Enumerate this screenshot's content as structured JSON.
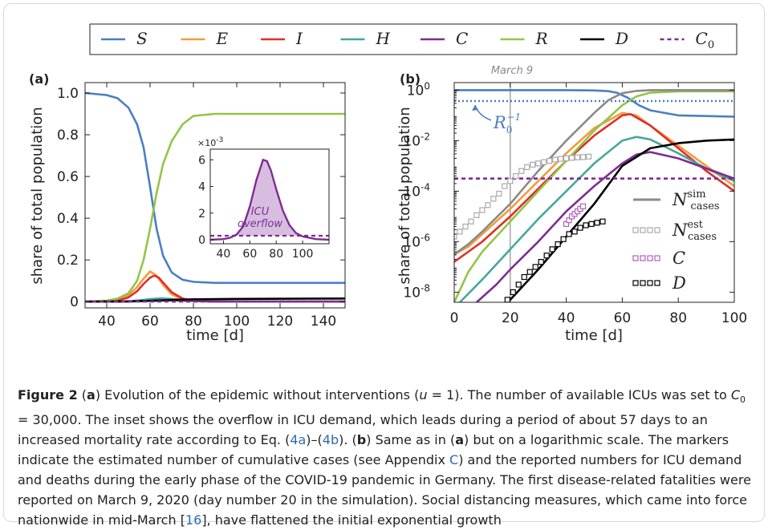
{
  "legend": [
    {
      "label": "S",
      "color": "#4a7fc1",
      "dash": false
    },
    {
      "label": "E",
      "color": "#f39c3b",
      "dash": false
    },
    {
      "label": "I",
      "color": "#e0302b",
      "dash": false
    },
    {
      "label": "H",
      "color": "#45a89a",
      "dash": false
    },
    {
      "label": "C",
      "color": "#7d2e8f",
      "dash": false
    },
    {
      "label": "R",
      "color": "#93c548",
      "dash": false
    },
    {
      "label": "D",
      "color": "#000000",
      "dash": false
    },
    {
      "label": "C",
      "sub": "0",
      "color": "#7d2e8f",
      "dash": true
    }
  ],
  "panel_a": {
    "tag": "(a)",
    "ylabel": "share of total population",
    "xlabel": "time [d]",
    "x_ticks": [
      "40",
      "60",
      "80",
      "100",
      "120",
      "140"
    ],
    "y_ticks": [
      "0",
      "0.2",
      "0.4",
      "0.6",
      "0.8",
      "1.0"
    ],
    "inset": {
      "multiplier": "×10",
      "multiplier_exp": "-3",
      "x_ticks": [
        "40",
        "60",
        "80",
        "100"
      ],
      "y_ticks": [
        "0",
        "2",
        "4",
        "6"
      ],
      "label_line1": "ICU",
      "label_line2": "overflow"
    }
  },
  "panel_b": {
    "tag": "(b)",
    "march_label": "March 9",
    "ylabel": "share of total population",
    "xlabel": "time [d]",
    "x_ticks": [
      "0",
      "20",
      "40",
      "60",
      "80",
      "100"
    ],
    "y_tick_base": "10",
    "y_tick_exps": [
      "0",
      "-2",
      "-4",
      "-6",
      "-8"
    ],
    "r0_label": "R",
    "r0_sub": "0",
    "r0_sup": "−1",
    "marker_legend": [
      {
        "sym": "N",
        "sub": "cases",
        "sup": "sim",
        "style": "line",
        "color": "#8a8a8a"
      },
      {
        "sym": "N",
        "sub": "cases",
        "sup": "est",
        "style": "squares",
        "color": "#a9a9a9"
      },
      {
        "sym": "C",
        "sub": "",
        "sup": "",
        "style": "squares",
        "color": "#b05dc0"
      },
      {
        "sym": "D",
        "sub": "",
        "sup": "",
        "style": "squares",
        "color": "#000000"
      }
    ]
  },
  "chart_data": [
    {
      "type": "line",
      "panel": "a",
      "xlabel": "time [d]",
      "ylabel": "share of total population",
      "xlim": [
        30,
        150
      ],
      "ylim": [
        -0.03,
        1.05
      ],
      "series": [
        {
          "name": "S",
          "x": [
            30,
            40,
            45,
            50,
            54,
            57,
            60,
            63,
            66,
            70,
            75,
            80,
            90,
            100,
            120,
            150
          ],
          "y": [
            1.0,
            0.99,
            0.975,
            0.93,
            0.85,
            0.74,
            0.55,
            0.35,
            0.22,
            0.14,
            0.105,
            0.095,
            0.09,
            0.09,
            0.09,
            0.09
          ]
        },
        {
          "name": "E",
          "x": [
            30,
            40,
            45,
            50,
            54,
            57,
            60,
            63,
            66,
            70,
            75,
            80,
            90,
            150
          ],
          "y": [
            0,
            0.002,
            0.008,
            0.03,
            0.07,
            0.11,
            0.145,
            0.125,
            0.08,
            0.035,
            0.01,
            0.003,
            0,
            0
          ]
        },
        {
          "name": "I",
          "x": [
            30,
            40,
            45,
            50,
            54,
            57,
            60,
            62,
            64,
            67,
            70,
            75,
            80,
            90,
            150
          ],
          "y": [
            0,
            0.001,
            0.005,
            0.02,
            0.05,
            0.085,
            0.115,
            0.125,
            0.115,
            0.08,
            0.045,
            0.015,
            0.004,
            0,
            0
          ]
        },
        {
          "name": "H",
          "x": [
            30,
            50,
            55,
            60,
            65,
            70,
            75,
            80,
            90,
            100,
            150
          ],
          "y": [
            0,
            0.002,
            0.006,
            0.012,
            0.016,
            0.013,
            0.008,
            0.004,
            0.001,
            0,
            0
          ]
        },
        {
          "name": "C",
          "x": [
            30,
            50,
            60,
            70,
            80,
            90,
            150
          ],
          "y": [
            0,
            0.001,
            0.004,
            0.006,
            0.003,
            0.001,
            0
          ]
        },
        {
          "name": "R",
          "x": [
            30,
            40,
            45,
            50,
            54,
            57,
            60,
            63,
            66,
            70,
            75,
            80,
            90,
            100,
            120,
            150
          ],
          "y": [
            0,
            0.005,
            0.015,
            0.04,
            0.1,
            0.2,
            0.35,
            0.52,
            0.66,
            0.77,
            0.85,
            0.89,
            0.9,
            0.9,
            0.9,
            0.9
          ]
        },
        {
          "name": "D",
          "x": [
            30,
            50,
            60,
            70,
            80,
            100,
            150
          ],
          "y": [
            0,
            0.001,
            0.004,
            0.008,
            0.011,
            0.013,
            0.015
          ]
        },
        {
          "name": "C0",
          "x": [
            30,
            150
          ],
          "y": [
            0.0003,
            0.0003
          ]
        }
      ]
    },
    {
      "type": "line",
      "panel": "a-inset",
      "xlabel": "",
      "ylabel": "",
      "xlim": [
        30,
        120
      ],
      "ylim": [
        -0.0003,
        0.0068
      ],
      "series": [
        {
          "name": "C",
          "x": [
            30,
            40,
            45,
            50,
            55,
            60,
            65,
            70,
            73,
            76,
            80,
            85,
            90,
            95,
            100,
            110,
            120
          ],
          "y": [
            0.0,
            5e-05,
            0.00015,
            0.0004,
            0.001,
            0.0025,
            0.0045,
            0.006,
            0.0059,
            0.0052,
            0.0038,
            0.0022,
            0.0011,
            0.0005,
            0.00025,
            5e-05,
            0.0
          ]
        },
        {
          "name": "C0",
          "x": [
            30,
            120
          ],
          "y": [
            0.0003,
            0.0003
          ]
        }
      ]
    },
    {
      "type": "line",
      "panel": "b",
      "xlabel": "time [d]",
      "ylabel": "share of total population",
      "log_y": true,
      "xlim": [
        0,
        100
      ],
      "ylim_log10": [
        -8.4,
        0.3
      ],
      "series": [
        {
          "name": "S",
          "x": [
            0,
            40,
            50,
            55,
            58,
            62,
            66,
            70,
            80,
            100
          ],
          "log10y": [
            0,
            0,
            -0.01,
            -0.04,
            -0.1,
            -0.3,
            -0.6,
            -0.8,
            -1.0,
            -1.05
          ]
        },
        {
          "name": "E",
          "x": [
            0,
            5,
            10,
            20,
            30,
            40,
            50,
            60,
            65,
            70,
            80,
            90,
            100
          ],
          "log10y": [
            -6.5,
            -6.2,
            -5.7,
            -4.7,
            -3.6,
            -2.5,
            -1.5,
            -0.9,
            -1.0,
            -1.4,
            -2.2,
            -3.0,
            -3.8
          ]
        },
        {
          "name": "I",
          "x": [
            0,
            5,
            10,
            20,
            30,
            40,
            50,
            60,
            63,
            70,
            80,
            90,
            100
          ],
          "log10y": [
            -6.8,
            -6.4,
            -6.0,
            -5.0,
            -3.9,
            -2.8,
            -1.8,
            -1.0,
            -0.95,
            -1.4,
            -2.3,
            -3.2,
            -4.0
          ]
        },
        {
          "name": "H",
          "x": [
            2,
            10,
            20,
            30,
            40,
            50,
            60,
            65,
            70,
            80,
            90,
            100
          ],
          "log10y": [
            -8.4,
            -7.5,
            -6.3,
            -5.1,
            -4.0,
            -2.9,
            -2.0,
            -1.85,
            -1.95,
            -2.5,
            -3.1,
            -3.6
          ]
        },
        {
          "name": "C",
          "x": [
            8,
            15,
            20,
            30,
            40,
            50,
            60,
            65,
            70,
            80,
            90,
            100
          ],
          "log10y": [
            -8.4,
            -7.7,
            -7.1,
            -6.0,
            -4.8,
            -3.8,
            -2.9,
            -2.55,
            -2.45,
            -2.7,
            -3.1,
            -3.5
          ]
        },
        {
          "name": "R",
          "x": [
            0,
            5,
            10,
            20,
            30,
            40,
            50,
            55,
            60,
            65,
            70,
            80,
            100
          ],
          "log10y": [
            -8.4,
            -7.2,
            -6.4,
            -5.2,
            -4.0,
            -2.8,
            -1.6,
            -1.1,
            -0.6,
            -0.25,
            -0.1,
            -0.05,
            -0.05
          ]
        },
        {
          "name": "D",
          "x": [
            19,
            20,
            30,
            40,
            50,
            60,
            70,
            80,
            90,
            100
          ],
          "log10y": [
            -8.4,
            -8.3,
            -7.1,
            -5.8,
            -4.5,
            -3.0,
            -2.3,
            -2.1,
            -2.0,
            -1.95
          ]
        },
        {
          "name": "C0",
          "x": [
            0,
            100
          ],
          "log10y": [
            -3.5,
            -3.5
          ]
        },
        {
          "name": "R0^-1",
          "x": [
            0,
            100
          ],
          "log10y": [
            -0.43,
            -0.43
          ]
        },
        {
          "name": "N_cases^sim",
          "x": [
            0,
            5,
            10,
            20,
            30,
            40,
            50,
            55,
            60,
            65,
            70,
            80,
            100
          ],
          "log10y": [
            -6.5,
            -6.1,
            -5.6,
            -4.5,
            -3.2,
            -2.0,
            -0.9,
            -0.4,
            -0.12,
            -0.03,
            0,
            0,
            0
          ]
        }
      ],
      "markers": [
        {
          "name": "N_cases^est",
          "x": [
            0,
            2,
            4,
            6,
            8,
            10,
            12,
            14,
            16,
            18,
            20,
            22,
            24,
            26,
            28,
            30,
            32,
            34,
            36,
            38,
            40,
            42,
            44,
            46,
            48
          ],
          "log10y": [
            -5.8,
            -5.6,
            -5.4,
            -5.2,
            -4.95,
            -4.75,
            -4.55,
            -4.3,
            -4.1,
            -3.8,
            -3.6,
            -3.4,
            -3.2,
            -3.05,
            -2.95,
            -2.9,
            -2.85,
            -2.8,
            -2.75,
            -2.72,
            -2.7,
            -2.68,
            -2.66,
            -2.65,
            -2.63
          ]
        },
        {
          "name": "C",
          "x": [
            40,
            41,
            42,
            43,
            44,
            45,
            46
          ],
          "log10y": [
            -5.3,
            -5.15,
            -5.0,
            -4.9,
            -4.8,
            -4.7,
            -4.6
          ]
        },
        {
          "name": "D",
          "x": [
            19,
            21,
            23,
            25,
            27,
            29,
            31,
            33,
            35,
            37,
            39,
            41,
            43,
            45,
            47,
            49,
            51,
            53
          ],
          "log10y": [
            -8.3,
            -8.0,
            -7.7,
            -7.4,
            -7.2,
            -7.0,
            -6.8,
            -6.55,
            -6.3,
            -6.1,
            -5.9,
            -5.7,
            -5.6,
            -5.45,
            -5.35,
            -5.3,
            -5.25,
            -5.2
          ]
        }
      ],
      "vline": {
        "x": 20,
        "label": "March 9"
      }
    }
  ],
  "caption": {
    "fig": "Figure 2",
    "p1": "  (",
    "a": "a",
    "p2": ") Evolution of the epidemic without interventions (",
    "u": "u",
    "p3": " = 1). The number of available ICUs was set to",
    "c0": "C",
    "c0sub": "0",
    "p4": " = 30,000. The inset shows the overflow in ICU demand, which leads during a period of about 57 days to an increased mortality rate according to Eq. (",
    "ref1": "4a",
    "p5": ")–(",
    "ref2": "4b",
    "p6": "). (",
    "b": "b",
    "p7": ") Same as in (",
    "a2": "a",
    "p8": ") but on a logarithmic scale. The markers indicate the estimated number of cumulative cases (see Appendix ",
    "ref3": "C",
    "p9": ") and the reported numbers for ICU demand and deaths during the early phase of the COVID-19 pandemic in Germany. The first disease-related fatalities were reported on March 9, 2020 (day number 20 in the simulation). Social distancing measures, which came into force nationwide in mid-March [",
    "ref4": "16",
    "p10": "], have flattened the initial exponential growth"
  }
}
